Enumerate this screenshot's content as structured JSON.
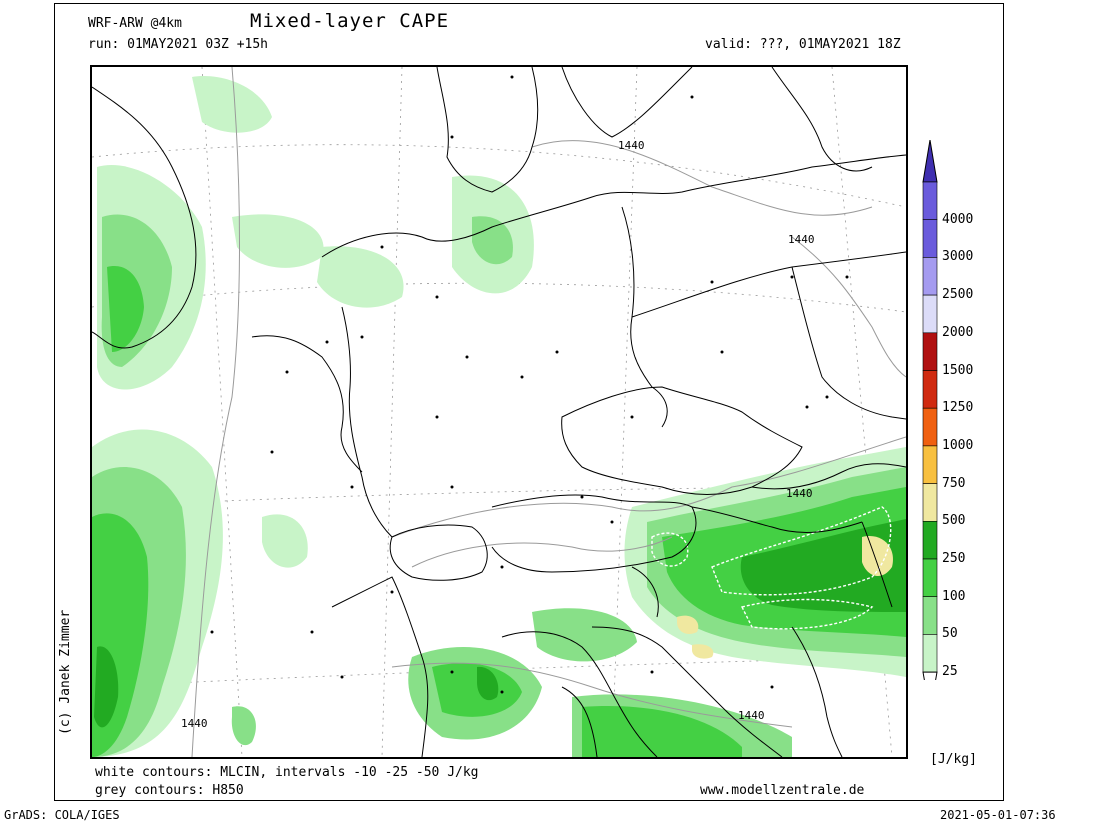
{
  "header": {
    "model": "WRF-ARW @4km",
    "title": "Mixed-layer CAPE",
    "run": "run: 01MAY2021 03Z +15h",
    "valid": "valid: ???, 01MAY2021 18Z"
  },
  "map": {
    "credit": "(c) Janek Zimmer",
    "contour_labels": [
      "1440",
      "1440",
      "1440",
      "1440",
      "1440"
    ]
  },
  "colorbar": {
    "unit": "[J/kg]",
    "levels": [
      {
        "label": "4000",
        "color": "#3f2fb0"
      },
      {
        "label": "3000",
        "color": "#6a5bdc"
      },
      {
        "label": "2500",
        "color": "#a59bf0"
      },
      {
        "label": "2000",
        "color": "#dcdcf8"
      },
      {
        "label": "1500",
        "color": "#b01010"
      },
      {
        "label": "1250",
        "color": "#d02a10"
      },
      {
        "label": "1000",
        "color": "#f06010"
      },
      {
        "label": "750",
        "color": "#f8c040"
      },
      {
        "label": "500",
        "color": "#f0e8a0"
      },
      {
        "label": "250",
        "color": "#22aa22"
      },
      {
        "label": "100",
        "color": "#44d044"
      },
      {
        "label": "50",
        "color": "#88e088"
      },
      {
        "label": "25",
        "color": "#c8f4c8"
      }
    ],
    "lowest_color": "#ffffff"
  },
  "footer": {
    "white_contours": "white contours: MLCIN, intervals -10 -25 -50 J/kg",
    "grey_contours": "grey contours: H850",
    "website": "www.modellzentrale.de",
    "grads": "GrADS: COLA/IGES",
    "timestamp": "2021-05-01-07:36"
  }
}
